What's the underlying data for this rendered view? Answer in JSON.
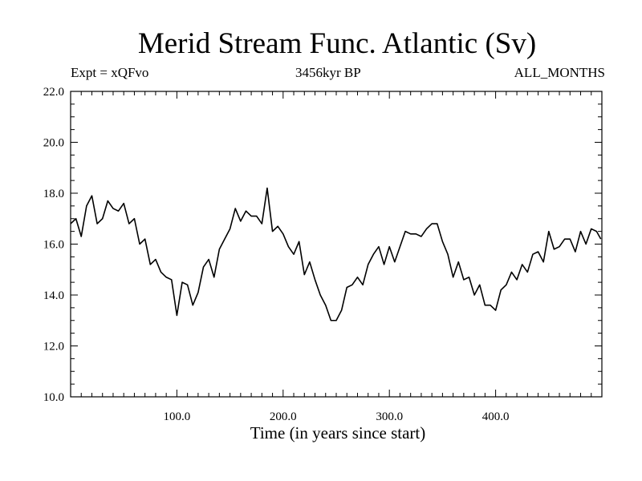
{
  "chart_data": {
    "type": "line",
    "title": "Merid Stream Func. Atlantic (Sv)",
    "subtitle_left": "Expt = xQFvo",
    "subtitle_center": "3456kyr BP",
    "subtitle_right": "ALL_MONTHS",
    "xlabel": "Time (in years since start)",
    "ylabel": "",
    "xlim": [
      0,
      500
    ],
    "ylim": [
      10,
      22
    ],
    "x_ticks": [
      100,
      200,
      300,
      400
    ],
    "x_tick_labels": [
      "100.0",
      "200.0",
      "300.0",
      "400.0"
    ],
    "y_ticks": [
      10,
      12,
      14,
      16,
      18,
      20,
      22
    ],
    "y_tick_labels": [
      "10.0",
      "12.0",
      "14.0",
      "16.0",
      "18.0",
      "20.0",
      "22.0"
    ],
    "series": [
      {
        "name": "Merid Stream Func. Atlantic",
        "color": "#000000",
        "x": [
          0,
          5,
          10,
          15,
          20,
          25,
          30,
          35,
          40,
          45,
          50,
          55,
          60,
          65,
          70,
          75,
          80,
          85,
          90,
          95,
          100,
          105,
          110,
          115,
          120,
          125,
          130,
          135,
          140,
          145,
          150,
          155,
          160,
          165,
          170,
          175,
          180,
          185,
          190,
          195,
          200,
          205,
          210,
          215,
          220,
          225,
          230,
          235,
          240,
          245,
          250,
          255,
          260,
          265,
          270,
          275,
          280,
          285,
          290,
          295,
          300,
          305,
          310,
          315,
          320,
          325,
          330,
          335,
          340,
          345,
          350,
          355,
          360,
          365,
          370,
          375,
          380,
          385,
          390,
          395,
          400,
          405,
          410,
          415,
          420,
          425,
          430,
          435,
          440,
          445,
          450,
          455,
          460,
          465,
          470,
          475,
          480,
          485,
          490,
          495,
          499
        ],
        "y": [
          16.8,
          17.0,
          16.3,
          17.5,
          17.9,
          16.8,
          17.0,
          17.7,
          17.4,
          17.3,
          17.6,
          16.8,
          17.0,
          16.0,
          16.2,
          15.2,
          15.4,
          14.9,
          14.7,
          14.6,
          13.2,
          14.5,
          14.4,
          13.6,
          14.1,
          15.1,
          15.4,
          14.7,
          15.8,
          16.2,
          16.6,
          17.4,
          16.9,
          17.3,
          17.1,
          17.1,
          16.8,
          18.2,
          16.5,
          16.7,
          16.4,
          15.9,
          15.6,
          16.1,
          14.8,
          15.3,
          14.6,
          14.0,
          13.6,
          13.0,
          13.0,
          13.4,
          14.3,
          14.4,
          14.7,
          14.4,
          15.2,
          15.6,
          15.9,
          15.2,
          15.9,
          15.3,
          15.9,
          16.5,
          16.4,
          16.4,
          16.3,
          16.6,
          16.8,
          16.8,
          16.1,
          15.6,
          14.7,
          15.3,
          14.6,
          14.7,
          14.0,
          14.4,
          13.6,
          13.6,
          13.4,
          14.2,
          14.4,
          14.9,
          14.6,
          15.2,
          14.9,
          15.6,
          15.7,
          15.3,
          16.5,
          15.8,
          15.9,
          16.2,
          16.2,
          15.7,
          16.5,
          16.0,
          16.6,
          16.5,
          16.2
        ]
      }
    ]
  }
}
